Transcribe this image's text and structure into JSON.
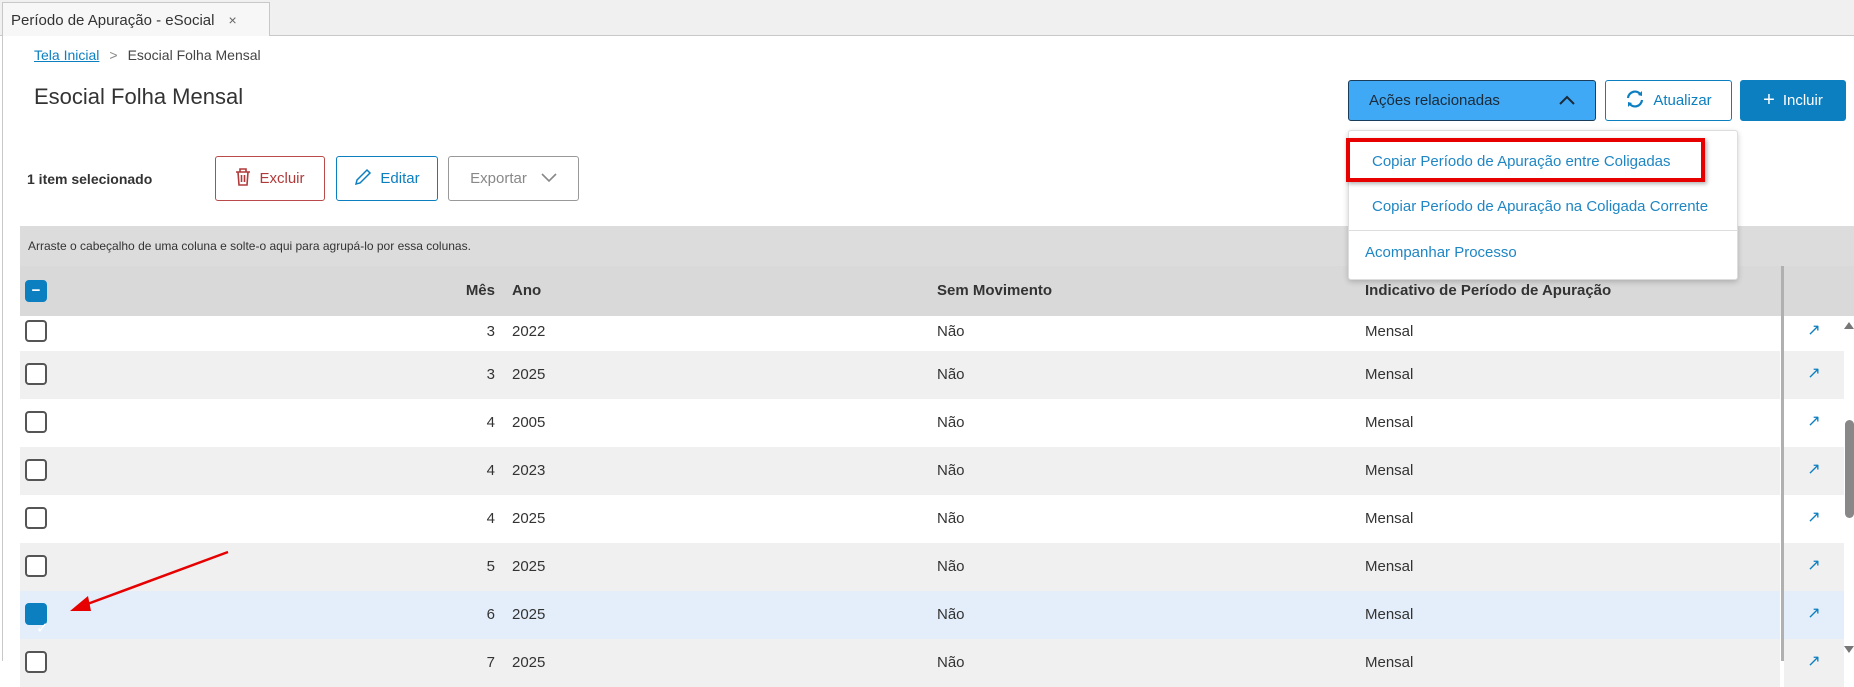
{
  "tab": {
    "title": "Período de Apuração - eSocial",
    "close": "×"
  },
  "breadcrumb": {
    "home": "Tela Inicial",
    "separator": ">",
    "current": "Esocial Folha Mensal"
  },
  "page_title": "Esocial Folha Mensal",
  "actions": {
    "related": "Ações relacionadas",
    "refresh": "Atualizar",
    "add": "Incluir"
  },
  "toolbar": {
    "selected": "1 item selecionado",
    "delete": "Excluir",
    "edit": "Editar",
    "export": "Exportar"
  },
  "group_hint": "Arraste o cabeçalho de uma coluna e solte-o aqui para agrupá-lo por essa colunas.",
  "columns": {
    "mes": "Mês",
    "ano": "Ano",
    "sem_movimento": "Sem Movimento",
    "indicativo": "Indicativo de Período de Apuração"
  },
  "rows": [
    {
      "mes": "3",
      "ano": "2022",
      "sem": "Não",
      "ind": "Mensal",
      "checked": false
    },
    {
      "mes": "3",
      "ano": "2025",
      "sem": "Não",
      "ind": "Mensal",
      "checked": false
    },
    {
      "mes": "4",
      "ano": "2005",
      "sem": "Não",
      "ind": "Mensal",
      "checked": false
    },
    {
      "mes": "4",
      "ano": "2023",
      "sem": "Não",
      "ind": "Mensal",
      "checked": false
    },
    {
      "mes": "4",
      "ano": "2025",
      "sem": "Não",
      "ind": "Mensal",
      "checked": false
    },
    {
      "mes": "5",
      "ano": "2025",
      "sem": "Não",
      "ind": "Mensal",
      "checked": false
    },
    {
      "mes": "6",
      "ano": "2025",
      "sem": "Não",
      "ind": "Mensal",
      "checked": true
    },
    {
      "mes": "7",
      "ano": "2025",
      "sem": "Não",
      "ind": "Mensal",
      "checked": false
    }
  ],
  "menu": {
    "items": [
      "Copiar Período de Apuração entre Coligadas",
      "Copiar Período de Apuração na Coligada Corrente",
      "Acompanhar Processo"
    ]
  },
  "colors": {
    "primary": "#0c7fc0",
    "related_button": "#3fa9f5",
    "highlight": "#e60000",
    "selected_row": "#e3eefa"
  }
}
